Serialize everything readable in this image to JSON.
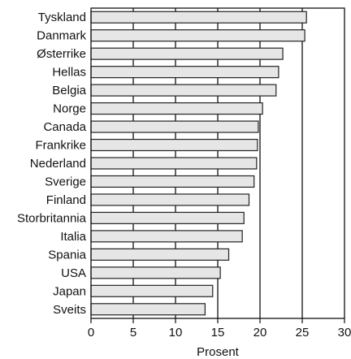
{
  "chart_data": {
    "type": "bar",
    "orientation": "horizontal",
    "categories": [
      "Tyskland",
      "Danmark",
      "Østerrike",
      "Hellas",
      "Belgia",
      "Norge",
      "Canada",
      "Frankrike",
      "Nederland",
      "Sverige",
      "Finland",
      "Storbritannia",
      "Italia",
      "Spania",
      "USA",
      "Japan",
      "Sveits"
    ],
    "values": [
      25.5,
      25.3,
      22.7,
      22.2,
      21.9,
      20.3,
      19.8,
      19.7,
      19.6,
      19.3,
      18.7,
      18.1,
      17.9,
      16.3,
      15.3,
      14.4,
      13.5
    ],
    "xlabel": "Prosent",
    "ylabel": "",
    "title": "",
    "xlim": [
      0,
      30
    ],
    "xticks": [
      "0",
      "5",
      "10",
      "15",
      "20",
      "25",
      "30"
    ],
    "grid": "vertical at 5, 10, 15, 20, 25",
    "legend": "none",
    "colors": {
      "bar_fill": "#e6e6e6",
      "bar_stroke": "#222222",
      "axis": "#111111"
    }
  }
}
